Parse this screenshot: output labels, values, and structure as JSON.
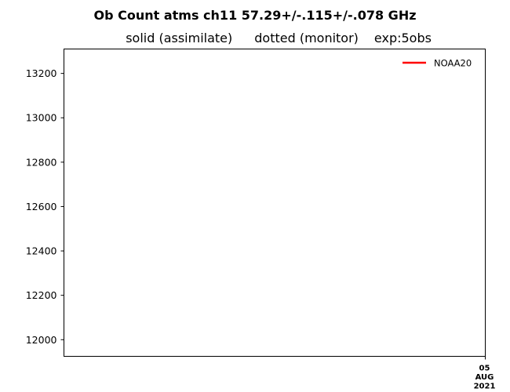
{
  "chart_data": {
    "type": "line",
    "title": "Ob Count atms ch11 57.29+/-.115+/-.078 GHz",
    "subtitle_parts": [
      "solid (assimilate)",
      "dotted (monitor)",
      "exp:5obs"
    ],
    "xlabel": "",
    "ylabel": "",
    "ylim": [
      11925,
      13310
    ],
    "yticks": [
      12000,
      12200,
      12400,
      12600,
      12800,
      13000,
      13200
    ],
    "xtick_labels": [
      [
        "05",
        "AUG",
        "2021"
      ]
    ],
    "grid": false,
    "legend_placement": "top-right",
    "series": [
      {
        "name": "NOAA20",
        "color": "#ff0000",
        "style": "solid",
        "values": []
      }
    ]
  }
}
